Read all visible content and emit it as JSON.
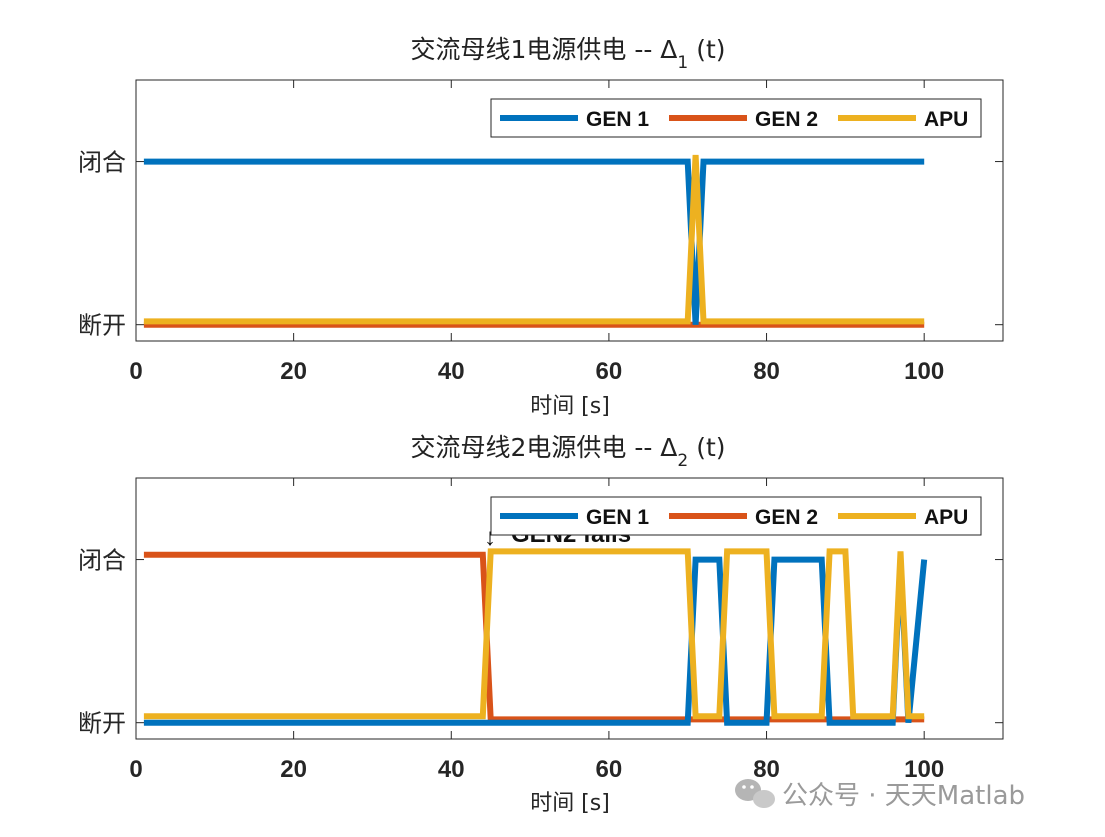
{
  "chart_data": [
    {
      "type": "line",
      "title": "交流母线1电源供电 -- Δ",
      "title_subscript": "1",
      "title_suffix": " (t)",
      "xlabel": "时间 [s]",
      "xlim": [
        0,
        110
      ],
      "xticks": [
        "0",
        "20",
        "40",
        "60",
        "80",
        "100"
      ],
      "ylim": [
        -0.1,
        1.5
      ],
      "yticks": [
        {
          "value": 0,
          "label": "断开"
        },
        {
          "value": 1,
          "label": "闭合"
        }
      ],
      "legend": "top-right",
      "grid": false,
      "series": [
        {
          "name": "GEN 1",
          "color": "#0072BD",
          "x": [
            1,
            70,
            71,
            72,
            100
          ],
          "y": [
            1,
            1,
            0,
            1,
            1
          ]
        },
        {
          "name": "GEN 2",
          "color": "#D95319",
          "x": [
            1,
            100
          ],
          "y": [
            0,
            0
          ]
        },
        {
          "name": "APU",
          "color": "#EDB120",
          "x": [
            1,
            70,
            71,
            72,
            100
          ],
          "y": [
            0.02,
            0.02,
            1.04,
            0.02,
            0.02
          ]
        }
      ]
    },
    {
      "type": "line",
      "title": "交流母线2电源供电 -- Δ",
      "title_subscript": "2",
      "title_suffix": " (t)",
      "xlabel": "时间 [s]",
      "xlim": [
        0,
        110
      ],
      "xticks": [
        "0",
        "20",
        "40",
        "60",
        "80",
        "100"
      ],
      "ylim": [
        -0.1,
        1.5
      ],
      "yticks": [
        {
          "value": 0,
          "label": "断开"
        },
        {
          "value": 1,
          "label": "闭合"
        }
      ],
      "legend": "top-right",
      "grid": false,
      "annotation": {
        "text": "GEN2 fails",
        "x": 44,
        "arrow": "↓"
      },
      "series": [
        {
          "name": "GEN 1",
          "color": "#0072BD",
          "x": [
            1,
            70,
            71,
            74,
            75,
            80,
            81,
            87,
            88,
            96,
            97,
            98,
            100
          ],
          "y": [
            0,
            0,
            1,
            1,
            0,
            0,
            1,
            1,
            0,
            0,
            1,
            0,
            1
          ]
        },
        {
          "name": "GEN 2",
          "color": "#D95319",
          "x": [
            1,
            44,
            45,
            100
          ],
          "y": [
            1.03,
            1.03,
            0.02,
            0.02
          ]
        },
        {
          "name": "APU",
          "color": "#EDB120",
          "x": [
            1,
            44,
            45,
            70,
            71,
            74,
            75,
            80,
            81,
            87,
            88,
            90,
            91,
            96,
            97,
            98,
            100
          ],
          "y": [
            0.04,
            0.04,
            1.05,
            1.05,
            0.04,
            0.04,
            1.05,
            1.05,
            0.04,
            0.04,
            1.05,
            1.05,
            0.04,
            0.04,
            1.05,
            0.04,
            0.04
          ]
        }
      ]
    }
  ],
  "watermark": {
    "text": "公众号 · 天天Matlab",
    "icon": "wechat-icon"
  }
}
